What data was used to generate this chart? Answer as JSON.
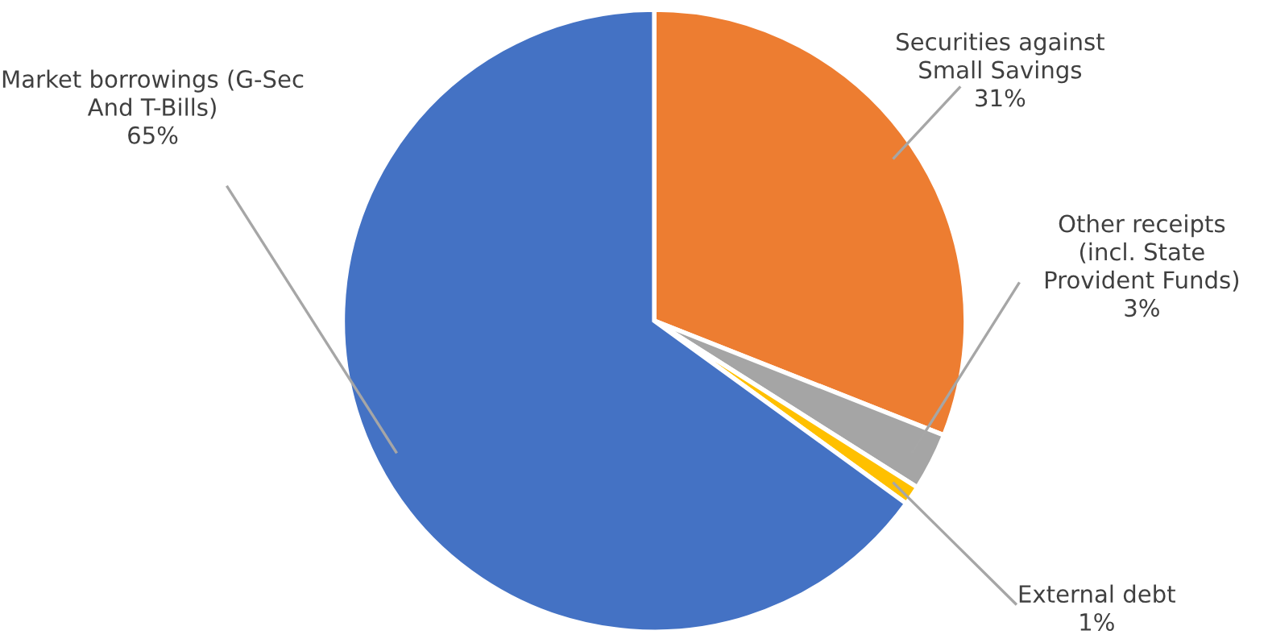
{
  "chart_data": {
    "type": "pie",
    "categories": [
      "Securities against\nSmall Savings",
      "Other receipts\n(incl. State\nProvident Funds)",
      "External debt",
      "Market borrowings (G-Sec\nAnd T-Bills)"
    ],
    "values": [
      31,
      3,
      1,
      65
    ],
    "value_labels": [
      "31%",
      "3%",
      "1%",
      "65%"
    ],
    "colors": [
      "#ed7d31",
      "#a5a5a5",
      "#ffc000",
      "#4472c4"
    ],
    "legend": false
  }
}
